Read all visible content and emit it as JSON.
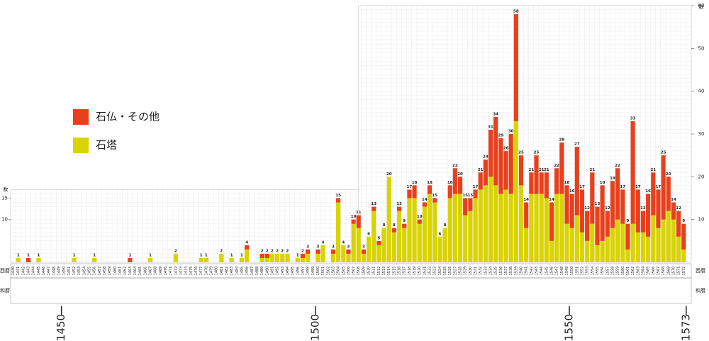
{
  "chart_data": {
    "type": "stacked-bar",
    "row_labels": [
      "西暦",
      "和暦"
    ],
    "y_axis_label": "数",
    "categories": [
      "1440",
      "1441",
      "1442",
      "1443",
      "1444",
      "1445",
      "1446",
      "1447",
      "1448",
      "1449",
      "1450",
      "1451",
      "1452",
      "1453",
      "1454",
      "1455",
      "1456",
      "1457",
      "1458",
      "1459",
      "1460",
      "1461",
      "1462",
      "1463",
      "1464",
      "1465",
      "1466",
      "1467",
      "1468",
      "1469",
      "1470",
      "1471",
      "1472",
      "1473",
      "1474",
      "1475",
      "1476",
      "1477",
      "1478",
      "1479",
      "1480",
      "1481",
      "1482",
      "1483",
      "1484",
      "1485",
      "1486",
      "1487",
      "1488",
      "1489",
      "1490",
      "1491",
      "1492",
      "1493",
      "1494",
      "1495",
      "1496",
      "1497",
      "1498",
      "1499",
      "1500",
      "1501",
      "1502",
      "1503",
      "1504",
      "1505",
      "1506",
      "1507",
      "1508",
      "1509",
      "1510",
      "1511",
      "1512",
      "1513",
      "1514",
      "1515",
      "1516",
      "1517",
      "1518",
      "1519",
      "1520",
      "1521",
      "1522",
      "1523",
      "1524",
      "1525",
      "1526",
      "1527",
      "1528",
      "1529",
      "1530",
      "1531",
      "1532",
      "1533",
      "1534",
      "1535",
      "1536",
      "1537",
      "1538",
      "1539",
      "1540",
      "1541",
      "1542",
      "1543",
      "1544",
      "1545",
      "1546",
      "1547",
      "1548",
      "1549",
      "1550",
      "1551",
      "1552",
      "1553",
      "1554",
      "1555",
      "1556",
      "1557",
      "1558",
      "1559",
      "1560",
      "1561",
      "1562",
      "1563",
      "1564",
      "1565",
      "1566",
      "1567",
      "1568",
      "1569",
      "1570",
      "1571",
      "1572"
    ],
    "series": [
      {
        "name": "石塔",
        "color": "#d9d400",
        "values": [
          0,
          1,
          0,
          0,
          0,
          1,
          0,
          0,
          0,
          0,
          0,
          0,
          1,
          0,
          0,
          0,
          1,
          0,
          0,
          0,
          0,
          0,
          0,
          0,
          0,
          0,
          0,
          1,
          0,
          0,
          0,
          0,
          2,
          0,
          0,
          0,
          0,
          1,
          1,
          0,
          0,
          2,
          0,
          1,
          0,
          1,
          3,
          0,
          0,
          1,
          1,
          2,
          2,
          2,
          2,
          0,
          1,
          1,
          2,
          0,
          2,
          4,
          0,
          2,
          14,
          4,
          2,
          9,
          8,
          2,
          6,
          12,
          4,
          8,
          20,
          7,
          12,
          8,
          15,
          15,
          9,
          13,
          16,
          14,
          6,
          8,
          15,
          16,
          16,
          11,
          12,
          15,
          17,
          18,
          20,
          18,
          16,
          17,
          16,
          33,
          18,
          8,
          16,
          16,
          16,
          15,
          5,
          16,
          16,
          9,
          8,
          11,
          7,
          5,
          9,
          4,
          5,
          6,
          8,
          10,
          9,
          3,
          9,
          7,
          7,
          6,
          11,
          8,
          10,
          12,
          10,
          6,
          3
        ]
      },
      {
        "name": "石仏・その他",
        "color": "#e8401c",
        "values": [
          0,
          0,
          0,
          1,
          0,
          0,
          0,
          0,
          0,
          0,
          0,
          0,
          0,
          0,
          0,
          0,
          0,
          0,
          0,
          0,
          0,
          0,
          0,
          1,
          0,
          0,
          0,
          0,
          0,
          0,
          0,
          0,
          0,
          0,
          0,
          0,
          0,
          0,
          0,
          0,
          0,
          0,
          0,
          0,
          0,
          0,
          1,
          0,
          0,
          1,
          1,
          0,
          0,
          0,
          0,
          0,
          0,
          1,
          1,
          0,
          1,
          0,
          0,
          1,
          1,
          0,
          1,
          1,
          3,
          1,
          0,
          1,
          1,
          0,
          0,
          1,
          1,
          1,
          2,
          3,
          1,
          1,
          2,
          1,
          0,
          0,
          3,
          6,
          4,
          4,
          3,
          2,
          4,
          6,
          11,
          16,
          13,
          9,
          14,
          25,
          7,
          6,
          5,
          9,
          5,
          6,
          9,
          6,
          12,
          9,
          8,
          16,
          10,
          7,
          12,
          9,
          13,
          6,
          11,
          12,
          8,
          6,
          24,
          10,
          5,
          10,
          10,
          9,
          15,
          8,
          4,
          6,
          6
        ]
      }
    ],
    "totals": [
      null,
      1,
      null,
      1,
      null,
      1,
      null,
      null,
      null,
      null,
      null,
      null,
      1,
      null,
      null,
      null,
      1,
      null,
      null,
      null,
      null,
      null,
      null,
      1,
      null,
      null,
      null,
      1,
      null,
      null,
      null,
      null,
      2,
      null,
      null,
      null,
      null,
      1,
      1,
      null,
      null,
      2,
      null,
      1,
      null,
      1,
      4,
      null,
      null,
      2,
      2,
      2,
      2,
      2,
      2,
      null,
      1,
      2,
      3,
      null,
      3,
      4,
      null,
      3,
      15,
      4,
      3,
      10,
      11,
      3,
      6,
      13,
      5,
      8,
      20,
      8,
      13,
      9,
      17,
      18,
      10,
      14,
      18,
      15,
      6,
      8,
      18,
      22,
      20,
      15,
      15,
      17,
      21,
      24,
      31,
      34,
      29,
      26,
      30,
      58,
      25,
      14,
      21,
      25,
      21,
      21,
      14,
      22,
      28,
      18,
      16,
      27,
      17,
      12,
      21,
      13,
      18,
      12,
      19,
      22,
      17,
      9,
      33,
      17,
      12,
      16,
      21,
      17,
      25,
      20,
      14,
      12,
      9
    ],
    "ylim": [
      0,
      60
    ],
    "yticks": [
      10,
      20,
      30,
      40,
      50,
      60
    ],
    "left_yticks": [
      10,
      15
    ],
    "xlim": [
      1440,
      1574
    ],
    "xticks": [
      1450,
      1500,
      1550,
      1573
    ],
    "grid": true
  }
}
